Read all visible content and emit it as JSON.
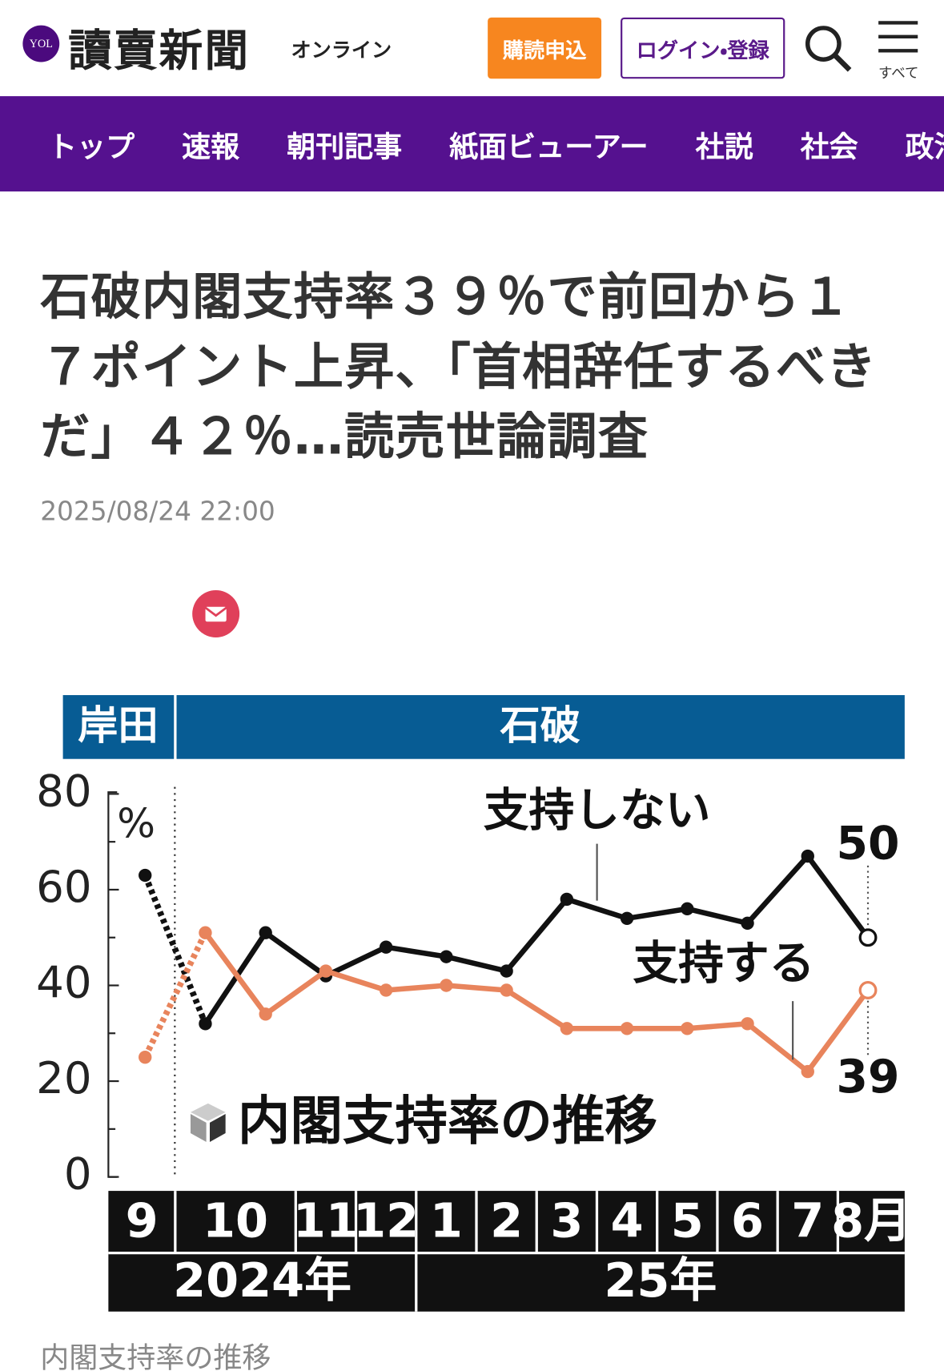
{
  "header": {
    "logo_mark": "YOL",
    "logo": "讀賣新聞",
    "logo_sub": "オンライン",
    "subscribe": "購読申込",
    "login": "ログイン・登録",
    "menu": "すべて"
  },
  "nav": [
    "トップ",
    "速報",
    "朝刊記事",
    "紙面ビューアー",
    "社説",
    "社会",
    "政治"
  ],
  "article": {
    "title": "石破内閣支持率３９％で前回から１７ポイント上昇、「首相辞任するべきだ」４２％…読売世論調査",
    "date": "2025/08/24 22:00",
    "caption": "内閣支持率の推移"
  },
  "chart_data": {
    "type": "line",
    "title": "内閣支持率の推移",
    "unit": "%",
    "periods": [
      "岸田",
      "石破"
    ],
    "categories": [
      "9",
      "10",
      null,
      "11",
      "12",
      "1",
      "2",
      "3",
      "4",
      "5",
      "6",
      "7",
      "8月"
    ],
    "years": [
      "2024年",
      "25年"
    ],
    "ylim": [
      0,
      80
    ],
    "yticks": [
      0,
      20,
      40,
      60,
      80
    ],
    "series": [
      {
        "name": "支持しない",
        "color": "#111111",
        "values": [
          63,
          32,
          51,
          42,
          48,
          46,
          43,
          58,
          54,
          56,
          53,
          67,
          50
        ]
      },
      {
        "name": "支持する",
        "color": "#e8845c",
        "values": [
          25,
          51,
          34,
          43,
          39,
          40,
          39,
          31,
          31,
          31,
          32,
          22,
          39
        ]
      }
    ]
  }
}
